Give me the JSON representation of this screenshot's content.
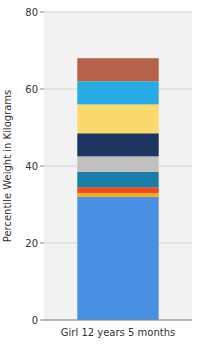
{
  "chart_data": {
    "type": "bar",
    "stacked": true,
    "y_label": "Percentile Weight in Kilograms",
    "categories": [
      "Girl 12 years 5 months"
    ],
    "series": [
      {
        "color": "#4a90e2",
        "values": [
          32.0
        ]
      },
      {
        "color": "#f5a623",
        "values": [
          1.0
        ]
      },
      {
        "color": "#e84c1e",
        "values": [
          1.5
        ]
      },
      {
        "color": "#1a7da8",
        "values": [
          4.0
        ]
      },
      {
        "color": "#c0c0c0",
        "values": [
          4.0
        ]
      },
      {
        "color": "#1e3560",
        "values": [
          6.0
        ]
      },
      {
        "color": "#fcd96e",
        "values": [
          7.5
        ]
      },
      {
        "color": "#29aae2",
        "values": [
          6.0
        ]
      },
      {
        "color": "#b5624a",
        "values": [
          6.0
        ]
      }
    ],
    "ylim": [
      0,
      80
    ],
    "yticks": [
      0,
      20,
      40,
      60,
      80
    ],
    "grid": true
  }
}
